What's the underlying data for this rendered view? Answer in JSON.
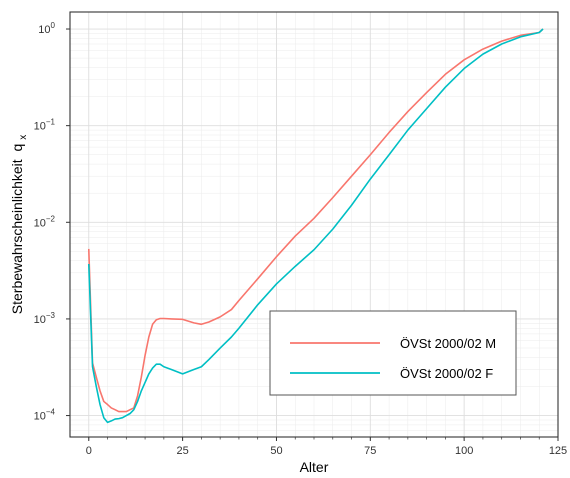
{
  "chart_data": {
    "type": "line",
    "xlabel": "Alter",
    "ylabel": "Sterbewahrscheinlichkeit",
    "ylabel_subscript": "x",
    "ylabel_symbol": "q",
    "xlim": [
      -5,
      125
    ],
    "ylim": [
      6e-05,
      1.5
    ],
    "y_scale": "log",
    "x_ticks": [
      0,
      25,
      50,
      75,
      100,
      125
    ],
    "y_ticks": [
      {
        "value": 0.0001,
        "base": "10",
        "exp": "−4"
      },
      {
        "value": 0.001,
        "base": "10",
        "exp": "−3"
      },
      {
        "value": 0.01,
        "base": "10",
        "exp": "−2"
      },
      {
        "value": 0.1,
        "base": "10",
        "exp": "−1"
      },
      {
        "value": 1,
        "base": "10",
        "exp": "0"
      }
    ],
    "grid": true,
    "legend_position": "bottom-right",
    "series": [
      {
        "name": "ÖVSt 2000/02 M",
        "color": "#F8766D",
        "x": [
          0,
          1,
          2,
          3,
          4,
          5,
          6,
          7,
          8,
          9,
          10,
          11,
          12,
          13,
          14,
          15,
          16,
          17,
          18,
          19,
          20,
          22,
          25,
          28,
          30,
          32,
          35,
          38,
          40,
          45,
          50,
          55,
          60,
          65,
          70,
          75,
          80,
          85,
          90,
          95,
          100,
          105,
          110,
          115,
          120,
          121
        ],
        "y": [
          0.0053,
          0.00035,
          0.00025,
          0.00018,
          0.00014,
          0.00013,
          0.00012,
          0.000115,
          0.00011,
          0.00011,
          0.00011,
          0.000115,
          0.00012,
          0.00016,
          0.00025,
          0.00042,
          0.00065,
          0.00088,
          0.00098,
          0.00101,
          0.00101,
          0.001,
          0.00099,
          0.00091,
          0.00088,
          0.00093,
          0.00105,
          0.00125,
          0.00155,
          0.0026,
          0.0044,
          0.0072,
          0.011,
          0.018,
          0.03,
          0.05,
          0.085,
          0.14,
          0.22,
          0.34,
          0.48,
          0.62,
          0.75,
          0.86,
          0.92,
          1.0
        ]
      },
      {
        "name": "ÖVSt 2000/02 F",
        "color": "#00BFC4",
        "x": [
          0,
          1,
          2,
          3,
          4,
          5,
          6,
          7,
          8,
          9,
          10,
          11,
          12,
          13,
          14,
          15,
          16,
          17,
          18,
          19,
          20,
          22,
          25,
          28,
          30,
          32,
          35,
          38,
          40,
          45,
          50,
          55,
          60,
          65,
          70,
          75,
          80,
          85,
          90,
          95,
          100,
          105,
          110,
          115,
          120,
          121
        ],
        "y": [
          0.0037,
          0.00032,
          0.0002,
          0.00013,
          9.5e-05,
          8.5e-05,
          8.8e-05,
          9.2e-05,
          9.3e-05,
          9.5e-05,
          0.0001,
          0.000105,
          0.000115,
          0.00014,
          0.00018,
          0.00022,
          0.00027,
          0.00031,
          0.00034,
          0.00034,
          0.00032,
          0.0003,
          0.00027,
          0.0003,
          0.00032,
          0.00038,
          0.0005,
          0.00065,
          0.0008,
          0.0014,
          0.0023,
          0.0035,
          0.0052,
          0.0085,
          0.015,
          0.028,
          0.05,
          0.09,
          0.15,
          0.25,
          0.39,
          0.55,
          0.7,
          0.83,
          0.92,
          1.0
        ]
      }
    ]
  }
}
